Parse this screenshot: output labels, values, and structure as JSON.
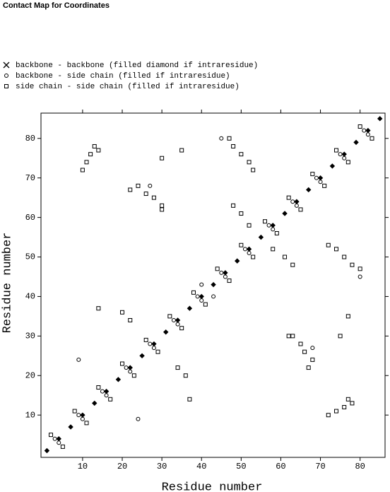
{
  "chart_data": {
    "type": "scatter",
    "title": "Contact Map for Coordinates",
    "x_label": "Residue number",
    "y_label": "Residue number",
    "xlim": [
      -0.5,
      86.3
    ],
    "ylim": [
      -0.7,
      86.4
    ],
    "xticks": [
      10,
      20,
      30,
      40,
      50,
      60,
      70,
      80
    ],
    "yticks": [
      10,
      20,
      30,
      40,
      50,
      60,
      70,
      80
    ],
    "series": [
      {
        "name": "backbone - backbone (filled diamond if intraresidue)",
        "marker": "diamond",
        "color": "#000000",
        "x": [
          1,
          4,
          7,
          10,
          13,
          16,
          19,
          22,
          25,
          28,
          31,
          34,
          37,
          40,
          43,
          46,
          49,
          52,
          55,
          58,
          61,
          64,
          67,
          70,
          73,
          76,
          79,
          82,
          85
        ],
        "values": [
          1,
          4,
          7,
          10,
          13,
          16,
          19,
          22,
          25,
          28,
          31,
          34,
          37,
          40,
          43,
          46,
          49,
          52,
          55,
          58,
          61,
          64,
          67,
          70,
          73,
          76,
          79,
          82,
          85
        ]
      },
      {
        "name": "backbone - side chain (filled if intraresidue)",
        "marker": "circle",
        "color": "#000000",
        "x": [
          3,
          4,
          9,
          10,
          15,
          16,
          21,
          22,
          27,
          28,
          33,
          34,
          39,
          40,
          45,
          46,
          51,
          52,
          57,
          58,
          63,
          64,
          69,
          70,
          75,
          76,
          81,
          82,
          27,
          68,
          9,
          24,
          45,
          80,
          40,
          43
        ],
        "values": [
          4,
          3,
          10,
          9,
          16,
          15,
          22,
          21,
          28,
          27,
          34,
          33,
          40,
          39,
          46,
          45,
          52,
          51,
          58,
          57,
          64,
          63,
          70,
          69,
          76,
          75,
          82,
          81,
          68,
          27,
          24,
          9,
          80,
          45,
          43,
          40
        ]
      },
      {
        "name": "side chain - side chain (filled if intraresidue)",
        "marker": "square",
        "color": "#000000",
        "x": [
          10,
          11,
          12,
          13,
          14,
          72,
          74,
          76,
          78,
          77,
          22,
          24,
          26,
          28,
          30,
          67,
          68,
          66,
          65,
          63,
          47,
          48,
          50,
          52,
          53,
          80,
          78,
          76,
          74,
          72,
          48,
          50,
          52,
          63,
          61,
          58,
          34,
          36,
          22,
          20,
          37,
          14,
          30,
          35,
          75,
          77,
          62,
          30,
          2,
          5,
          8,
          11,
          14,
          17,
          20,
          23,
          26,
          29,
          32,
          35,
          38,
          41,
          44,
          47,
          50,
          53,
          56,
          59,
          62,
          65,
          68,
          71,
          74,
          77,
          80,
          83
        ],
        "values": [
          72,
          74,
          76,
          78,
          77,
          10,
          11,
          12,
          13,
          14,
          67,
          68,
          66,
          65,
          63,
          22,
          24,
          26,
          28,
          30,
          80,
          78,
          76,
          74,
          72,
          47,
          48,
          50,
          52,
          53,
          63,
          61,
          58,
          48,
          50,
          52,
          22,
          20,
          34,
          36,
          14,
          37,
          75,
          77,
          30,
          35,
          30,
          62,
          5,
          2,
          11,
          8,
          17,
          14,
          23,
          20,
          29,
          26,
          35,
          32,
          41,
          38,
          47,
          44,
          53,
          50,
          59,
          56,
          65,
          62,
          71,
          68,
          77,
          74,
          83,
          80
        ]
      }
    ]
  }
}
